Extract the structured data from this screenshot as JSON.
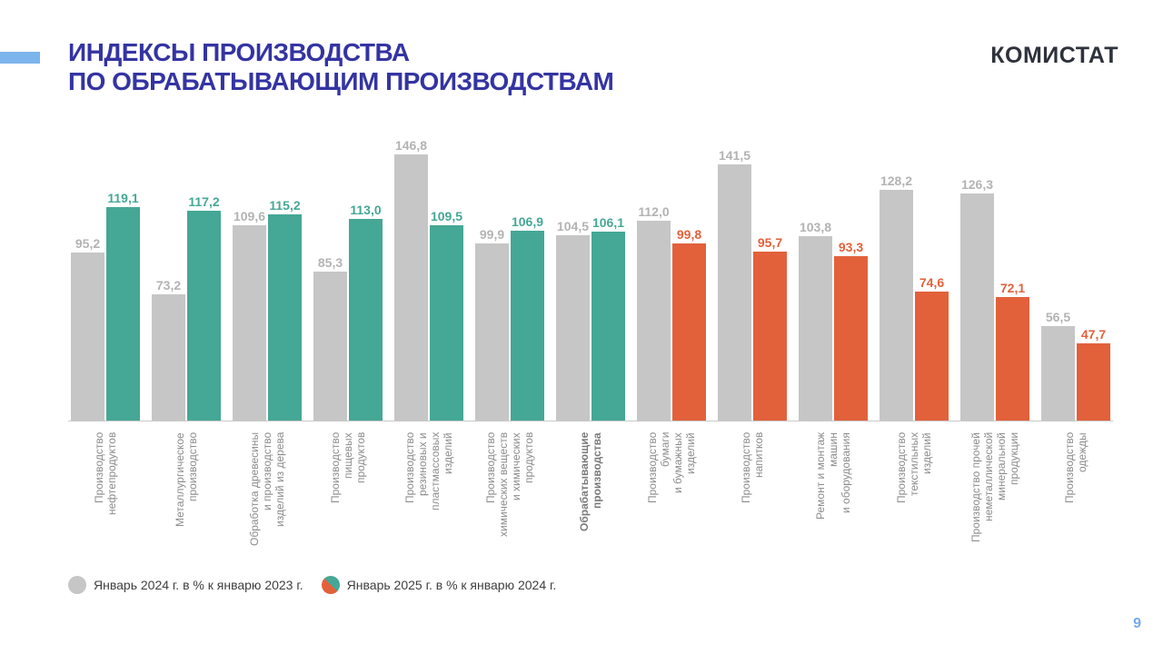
{
  "header": {
    "title_line1": "ИНДЕКСЫ ПРОИЗВОДСТВА",
    "title_line2": "ПО ОБРАБАТЫВАЮЩИМ ПРОИЗВОДСТВАМ",
    "logo": "КОМИСТАТ"
  },
  "footer": {
    "page_number": "9"
  },
  "colors": {
    "accent_bar": "#7CB4EC",
    "title": "#3434A3",
    "logo": "#2E323C",
    "bar_prev": "#C6C6C6",
    "bar_up": "#45A795",
    "bar_down": "#E2613B",
    "value_prev": "#B3B3B3",
    "category": "#8C8C8C",
    "category_emphasis": "#7A7A7A",
    "axis_line": "#C9C9C9",
    "legend_text": "#404040",
    "page_number": "#76A9EA"
  },
  "legend": {
    "items": [
      {
        "label": "Январь 2024 г. в % к январю 2023 г.",
        "marker": "gray-circle"
      },
      {
        "label": "Январь 2025 г. в % к январю 2024 г.",
        "marker": "split-circle-orange-teal"
      }
    ]
  },
  "chart_data": {
    "type": "bar",
    "title": "Индексы производства по обрабатывающим производствам",
    "xlabel": "",
    "ylabel": "",
    "ylim": [
      0,
      150
    ],
    "grid": false,
    "legend_position": "bottom",
    "value_format": "comma-decimal",
    "threshold": 100,
    "emphasis_category": "Обрабатывающие\nпроизводства",
    "categories": [
      "Производство\nнефтепродуктов",
      "Металлургическое\nпроизводство",
      "Обработка древесины\nи производство\nизделий из дерева",
      "Производство\nпищевых\nпродуктов",
      "Производство\nрезиновых и\nпластмассовых\nизделий",
      "Производство\nхимических веществ\nи химических\nпродуктов",
      "Обрабатывающие\nпроизводства",
      "Производство\nбумаги\nи бумажных\nизделий",
      "Производство\nнапитков",
      "Ремонт и монтаж\nмашин\nи оборудования",
      "Производство\nтекстильных\nизделий",
      "Производство прочей\nнеметаллической\nминеральной\nпродукции",
      "Производство\nодежды"
    ],
    "series": [
      {
        "name": "Январь 2024 г. в % к январю 2023 г.",
        "values": [
          95.2,
          73.2,
          109.6,
          85.3,
          146.8,
          99.9,
          104.5,
          112.0,
          141.5,
          103.8,
          128.2,
          126.3,
          56.5
        ]
      },
      {
        "name": "Январь 2025 г. в % к январю 2024 г.",
        "values": [
          119.1,
          117.2,
          115.2,
          113.0,
          109.5,
          106.9,
          106.1,
          99.8,
          95.7,
          93.3,
          74.6,
          72.1,
          47.7
        ]
      }
    ]
  }
}
